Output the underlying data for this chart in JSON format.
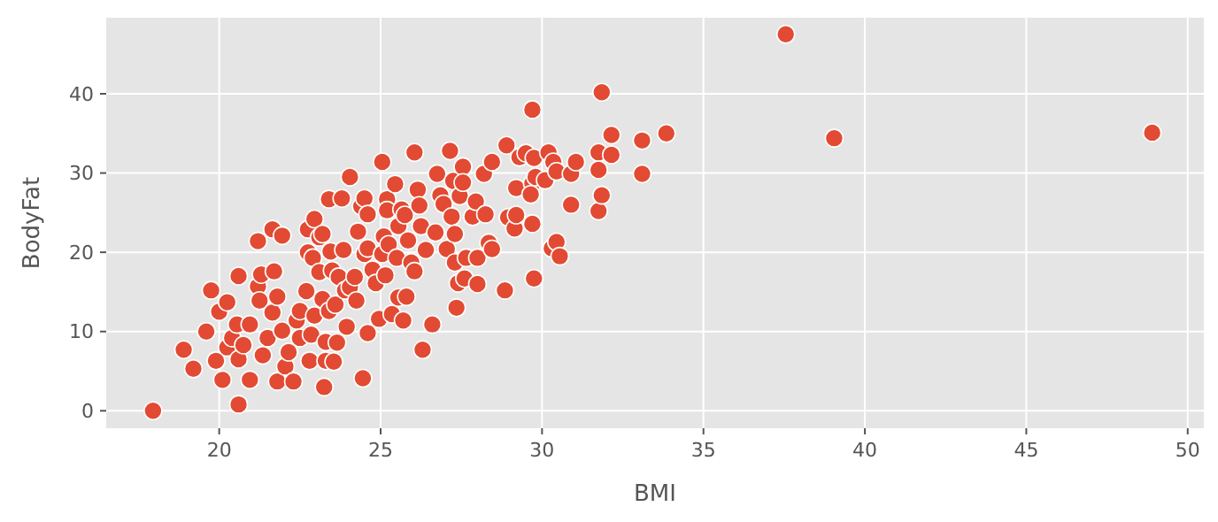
{
  "chart_data": {
    "type": "scatter",
    "xlabel": "BMI",
    "ylabel": "BodyFat",
    "color": "#e24a33",
    "marker": "circle",
    "grid": true,
    "xlim": [
      16.5,
      50.5
    ],
    "ylim": [
      -2.2,
      49.6
    ],
    "xticks": [
      20,
      25,
      30,
      35,
      40,
      45,
      50
    ],
    "yticks": [
      0,
      10,
      20,
      30,
      40
    ],
    "x": [
      17.95,
      18.9,
      19.2,
      19.6,
      19.75,
      19.9,
      20.0,
      20.1,
      20.25,
      20.25,
      20.4,
      20.55,
      20.6,
      20.6,
      20.6,
      20.75,
      20.95,
      20.95,
      21.2,
      21.2,
      21.3,
      21.25,
      21.35,
      21.5,
      21.65,
      21.7,
      21.65,
      21.8,
      21.8,
      21.95,
      21.95,
      22.05,
      22.15,
      22.3,
      22.4,
      22.5,
      22.5,
      22.7,
      22.75,
      22.75,
      22.8,
      22.85,
      22.9,
      22.95,
      22.95,
      23.1,
      23.1,
      23.2,
      23.2,
      23.25,
      23.3,
      23.3,
      23.4,
      23.4,
      23.45,
      23.5,
      23.55,
      23.6,
      23.65,
      23.7,
      23.8,
      23.85,
      23.9,
      23.95,
      24.05,
      24.05,
      24.2,
      24.25,
      24.3,
      24.4,
      24.45,
      24.5,
      24.5,
      24.6,
      24.6,
      24.6,
      24.75,
      24.85,
      24.95,
      25.05,
      25.05,
      25.1,
      25.15,
      25.2,
      25.2,
      25.25,
      25.35,
      25.45,
      25.5,
      25.55,
      25.55,
      25.65,
      25.7,
      25.75,
      25.8,
      25.85,
      25.95,
      26.05,
      26.05,
      26.15,
      26.2,
      26.25,
      26.3,
      26.4,
      26.6,
      26.7,
      26.75,
      26.85,
      26.95,
      27.05,
      27.15,
      27.2,
      27.25,
      27.3,
      27.3,
      27.35,
      27.4,
      27.45,
      27.55,
      27.55,
      27.6,
      27.65,
      27.85,
      27.95,
      28.0,
      28.0,
      28.2,
      28.25,
      28.35,
      28.45,
      28.45,
      28.85,
      28.9,
      28.95,
      29.15,
      29.2,
      29.2,
      29.3,
      29.5,
      29.7,
      29.7,
      29.7,
      29.75,
      29.75,
      29.65,
      29.8,
      30.1,
      30.2,
      30.3,
      30.35,
      30.45,
      30.45,
      30.55,
      30.9,
      30.9,
      31.05,
      31.75,
      31.75,
      31.75,
      31.85,
      31.85,
      32.15,
      32.15,
      33.1,
      33.1,
      33.85,
      37.55,
      39.05,
      48.9
    ],
    "values": [
      0,
      7.7,
      5.3,
      10.0,
      15.2,
      6.3,
      12.5,
      3.9,
      13.7,
      8.0,
      9.2,
      10.9,
      6.5,
      0.8,
      17.0,
      8.3,
      3.9,
      10.9,
      21.4,
      15.7,
      17.2,
      13.9,
      7.0,
      9.2,
      22.9,
      17.6,
      12.4,
      14.4,
      3.7,
      22.1,
      10.1,
      5.6,
      7.4,
      3.7,
      11.4,
      12.6,
      9.2,
      15.1,
      20.0,
      22.9,
      6.3,
      9.6,
      19.3,
      24.2,
      12.0,
      17.5,
      21.9,
      14.1,
      22.3,
      3.0,
      6.3,
      8.7,
      12.6,
      26.7,
      20.1,
      17.7,
      6.2,
      13.4,
      8.6,
      16.9,
      26.8,
      20.3,
      15.2,
      10.6,
      29.5,
      15.6,
      16.9,
      13.9,
      22.6,
      25.8,
      4.1,
      26.8,
      19.8,
      20.5,
      9.8,
      24.8,
      17.8,
      16.1,
      11.6,
      31.4,
      19.8,
      22.0,
      17.1,
      26.7,
      25.3,
      21.0,
      12.2,
      28.6,
      19.3,
      14.3,
      23.3,
      25.4,
      11.4,
      24.7,
      14.4,
      21.5,
      18.7,
      32.6,
      17.6,
      27.9,
      25.9,
      23.3,
      7.7,
      20.3,
      10.9,
      22.5,
      29.9,
      27.2,
      26.1,
      20.4,
      32.8,
      24.5,
      29.0,
      18.7,
      22.3,
      13.0,
      16.1,
      27.1,
      30.8,
      28.8,
      16.7,
      19.3,
      24.5,
      26.4,
      19.3,
      16.0,
      29.9,
      24.8,
      21.2,
      20.4,
      31.4,
      15.2,
      33.5,
      24.4,
      23.0,
      24.7,
      28.1,
      32.0,
      32.5,
      38.0,
      28.7,
      23.6,
      16.7,
      31.9,
      27.3,
      29.5,
      29.1,
      32.6,
      20.5,
      31.4,
      30.2,
      21.3,
      19.5,
      29.9,
      26.0,
      31.4,
      32.6,
      30.4,
      25.2,
      40.2,
      27.2,
      32.3,
      34.8,
      34.1,
      29.9,
      35.0,
      47.5,
      34.4,
      35.1
    ]
  }
}
